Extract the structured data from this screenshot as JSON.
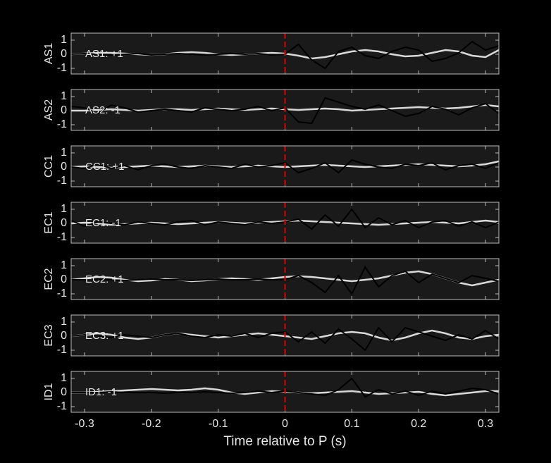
{
  "chart_data": [
    {
      "type": "line",
      "ylabel": "AS1",
      "annotation": "AS1: +1",
      "annotation_color": "#c00000",
      "vline": 0,
      "vline_color": "#e00000",
      "x": [
        -0.32,
        -0.3,
        -0.28,
        -0.26,
        -0.24,
        -0.22,
        -0.2,
        -0.18,
        -0.16,
        -0.14,
        -0.12,
        -0.1,
        -0.08,
        -0.06,
        -0.04,
        -0.02,
        0,
        0.02,
        0.04,
        0.06,
        0.08,
        0.1,
        0.12,
        0.14,
        0.16,
        0.18,
        0.2,
        0.22,
        0.24,
        0.26,
        0.28,
        0.3,
        0.32
      ],
      "xlim": [
        -0.32,
        0.32
      ],
      "ylim": [
        -1.4,
        1.5
      ],
      "yticks": [
        -1,
        0,
        1
      ],
      "series": [
        {
          "color": "#d9d9d9",
          "values": [
            0,
            0.05,
            0.1,
            0.1,
            0.05,
            0,
            -0.05,
            0,
            0.1,
            0.15,
            0.1,
            0,
            -0.05,
            0,
            0.05,
            0.1,
            0.05,
            -0.1,
            -0.3,
            -0.2,
            0,
            0.2,
            0.3,
            0.2,
            0,
            -0.15,
            -0.1,
            0.1,
            0.3,
            0.2,
            -0.1,
            -0.2,
            0.3
          ]
        },
        {
          "color": "#000000",
          "values": [
            0,
            0.05,
            0,
            -0.05,
            0,
            0.05,
            -0.05,
            0,
            0.05,
            0,
            -0.05,
            0,
            0.05,
            0,
            0.05,
            -0.05,
            0,
            0.7,
            -0.4,
            -1,
            0.2,
            0.5,
            -0.1,
            -0.3,
            0.2,
            0.5,
            0.3,
            -0.5,
            -0.3,
            0.1,
            0.9,
            0.3,
            0.6
          ]
        }
      ]
    },
    {
      "type": "line",
      "ylabel": "AS2",
      "annotation": "AS2: -1",
      "annotation_color": "#1010a0",
      "vline": 0,
      "vline_color": "#e00000",
      "x": [
        -0.32,
        -0.3,
        -0.28,
        -0.26,
        -0.24,
        -0.22,
        -0.2,
        -0.18,
        -0.16,
        -0.14,
        -0.12,
        -0.1,
        -0.08,
        -0.06,
        -0.04,
        -0.02,
        0,
        0.02,
        0.04,
        0.06,
        0.08,
        0.1,
        0.12,
        0.14,
        0.16,
        0.18,
        0.2,
        0.22,
        0.24,
        0.26,
        0.28,
        0.3,
        0.32
      ],
      "xlim": [
        -0.32,
        0.32
      ],
      "ylim": [
        -1.4,
        1.5
      ],
      "yticks": [
        -1,
        0,
        1
      ],
      "series": [
        {
          "color": "#d9d9d9",
          "values": [
            0,
            0,
            0.05,
            0.1,
            0.05,
            0,
            0.05,
            0.1,
            0.1,
            0.05,
            0.1,
            0.15,
            0.1,
            0.05,
            0.1,
            0.15,
            0.1,
            0.05,
            0.1,
            0.15,
            0.1,
            0,
            0.05,
            0.1,
            0.15,
            0.2,
            0.25,
            0.2,
            0.15,
            0.2,
            0.3,
            0.4,
            0.3
          ]
        },
        {
          "color": "#000000",
          "values": [
            0.3,
            0.2,
            -0.2,
            0.4,
            0.2,
            -0.1,
            0,
            0.1,
            0,
            -0.1,
            0.2,
            0.1,
            0,
            0.1,
            0.3,
            0,
            0.2,
            -0.8,
            -0.9,
            0.9,
            0.6,
            0.3,
            0.1,
            0.4,
            0,
            -0.4,
            -0.2,
            0.3,
            0.1,
            -0.3,
            0.2,
            0.5,
            -0.2
          ]
        }
      ]
    },
    {
      "type": "line",
      "ylabel": "CC1",
      "annotation": "CC1: +1",
      "annotation_color": "#c00000",
      "vline": 0,
      "vline_color": "#e00000",
      "x": [
        -0.32,
        -0.3,
        -0.28,
        -0.26,
        -0.24,
        -0.22,
        -0.2,
        -0.18,
        -0.16,
        -0.14,
        -0.12,
        -0.1,
        -0.08,
        -0.06,
        -0.04,
        -0.02,
        0,
        0.02,
        0.04,
        0.06,
        0.08,
        0.1,
        0.12,
        0.14,
        0.16,
        0.18,
        0.2,
        0.22,
        0.24,
        0.26,
        0.28,
        0.3,
        0.32
      ],
      "xlim": [
        -0.32,
        0.32
      ],
      "ylim": [
        -1.4,
        1.5
      ],
      "yticks": [
        -1,
        0,
        1
      ],
      "series": [
        {
          "color": "#d9d9d9",
          "values": [
            0,
            0.05,
            0,
            -0.05,
            0,
            0.05,
            0.1,
            0.05,
            0,
            0.05,
            0.1,
            0.05,
            0,
            0.05,
            0.1,
            0.05,
            0,
            0.05,
            0.1,
            0.15,
            0.1,
            0.05,
            0,
            0.05,
            0.1,
            0.15,
            0.2,
            0.15,
            0.1,
            0.05,
            0.1,
            0.2,
            0.4
          ]
        },
        {
          "color": "#000000",
          "values": [
            0,
            -0.1,
            0.2,
            -0.1,
            0.1,
            -0.2,
            0.1,
            0.2,
            0,
            -0.1,
            0.1,
            0,
            -0.1,
            0.2,
            0,
            0.1,
            0.3,
            -0.4,
            -0.1,
            0.3,
            -0.4,
            0.5,
            0.2,
            0,
            -0.1,
            0.2,
            0.1,
            0.3,
            -0.2,
            0.1,
            0.2,
            -0.1,
            0.3
          ]
        }
      ]
    },
    {
      "type": "line",
      "ylabel": "EC1",
      "annotation": "EC1: -1",
      "annotation_color": "#1010a0",
      "vline": 0,
      "vline_color": "#e00000",
      "x": [
        -0.32,
        -0.3,
        -0.28,
        -0.26,
        -0.24,
        -0.22,
        -0.2,
        -0.18,
        -0.16,
        -0.14,
        -0.12,
        -0.1,
        -0.08,
        -0.06,
        -0.04,
        -0.02,
        0,
        0.02,
        0.04,
        0.06,
        0.08,
        0.1,
        0.12,
        0.14,
        0.16,
        0.18,
        0.2,
        0.22,
        0.24,
        0.26,
        0.28,
        0.3,
        0.32
      ],
      "xlim": [
        -0.32,
        0.32
      ],
      "ylim": [
        -1.4,
        1.5
      ],
      "yticks": [
        -1,
        0,
        1
      ],
      "series": [
        {
          "color": "#d9d9d9",
          "values": [
            0,
            0.05,
            0,
            -0.1,
            -0.05,
            0,
            0.05,
            0,
            -0.05,
            0,
            0.05,
            0.1,
            0.05,
            0,
            0.05,
            0.1,
            0.15,
            0.2,
            0.15,
            0.1,
            0.05,
            0,
            -0.05,
            -0.1,
            -0.05,
            0,
            0.05,
            0.1,
            0.05,
            0,
            0.1,
            0.2,
            0.1
          ]
        },
        {
          "color": "#000000",
          "values": [
            0.2,
            -0.2,
            0.1,
            0,
            -0.1,
            0.1,
            0,
            -0.1,
            0.1,
            0.2,
            -0.1,
            0.1,
            0,
            -0.1,
            0.1,
            0,
            0.1,
            0.3,
            -0.4,
            0.6,
            -0.2,
            1.0,
            -0.3,
            0.4,
            -0.1,
            0.2,
            -0.3,
            0.1,
            0.2,
            -0.2,
            0.1,
            -0.3,
            0.1
          ]
        }
      ]
    },
    {
      "type": "line",
      "ylabel": "EC2",
      "annotation": "EC2: +1",
      "annotation_color": "#c00000",
      "vline": 0,
      "vline_color": "#e00000",
      "x": [
        -0.32,
        -0.3,
        -0.28,
        -0.26,
        -0.24,
        -0.22,
        -0.2,
        -0.18,
        -0.16,
        -0.14,
        -0.12,
        -0.1,
        -0.08,
        -0.06,
        -0.04,
        -0.02,
        0,
        0.02,
        0.04,
        0.06,
        0.08,
        0.1,
        0.12,
        0.14,
        0.16,
        0.18,
        0.2,
        0.22,
        0.24,
        0.26,
        0.28,
        0.3,
        0.32
      ],
      "xlim": [
        -0.32,
        0.32
      ],
      "ylim": [
        -1.4,
        1.5
      ],
      "yticks": [
        -1,
        0,
        1
      ],
      "series": [
        {
          "color": "#d9d9d9",
          "values": [
            0,
            0.1,
            0.2,
            0.15,
            0,
            -0.1,
            -0.05,
            0.05,
            0,
            -0.1,
            -0.05,
            0.05,
            0.1,
            0.05,
            0,
            0.1,
            0.2,
            0.25,
            0.2,
            0.1,
            0,
            -0.1,
            0,
            0.1,
            0.3,
            0.5,
            0.6,
            0.4,
            0.1,
            -0.2,
            -0.4,
            -0.2,
            0
          ]
        },
        {
          "color": "#000000",
          "values": [
            0,
            0,
            0.05,
            0,
            -0.05,
            0,
            0.05,
            0,
            0,
            -0.05,
            0,
            0.05,
            0,
            0,
            0.05,
            0,
            0,
            0.3,
            -0.2,
            -0.9,
            0.3,
            -1.0,
            0.9,
            -0.5,
            0.3,
            0.6,
            -0.2,
            0.4,
            0.1,
            -0.2,
            0.3,
            0.1,
            -0.1
          ]
        }
      ]
    },
    {
      "type": "line",
      "ylabel": "EC3",
      "annotation": "EC3: +1",
      "annotation_color": "#c00000",
      "vline": 0,
      "vline_color": "#e00000",
      "x": [
        -0.32,
        -0.3,
        -0.28,
        -0.26,
        -0.24,
        -0.22,
        -0.2,
        -0.18,
        -0.16,
        -0.14,
        -0.12,
        -0.1,
        -0.08,
        -0.06,
        -0.04,
        -0.02,
        0,
        0.02,
        0.04,
        0.06,
        0.08,
        0.1,
        0.12,
        0.14,
        0.16,
        0.18,
        0.2,
        0.22,
        0.24,
        0.26,
        0.28,
        0.3,
        0.32
      ],
      "xlim": [
        -0.32,
        0.32
      ],
      "ylim": [
        -1.4,
        1.5
      ],
      "yticks": [
        -1,
        0,
        1
      ],
      "series": [
        {
          "color": "#d9d9d9",
          "values": [
            0,
            0.1,
            0.2,
            0.1,
            -0.1,
            -0.2,
            -0.1,
            0.1,
            0.2,
            0.1,
            0,
            -0.1,
            0,
            0.1,
            0.2,
            0.1,
            0,
            -0.1,
            -0.2,
            0,
            0.2,
            0.3,
            0.2,
            -0.1,
            -0.3,
            -0.1,
            0.2,
            0.4,
            0.2,
            -0.1,
            -0.2,
            0,
            0.1
          ]
        },
        {
          "color": "#000000",
          "values": [
            0,
            0.1,
            0,
            -0.1,
            0.1,
            0,
            -0.1,
            0.1,
            0.2,
            0,
            -0.1,
            0.1,
            0,
            0.2,
            -0.1,
            0.2,
            0.3,
            -0.4,
            0.3,
            -0.5,
            0.5,
            -0.2,
            -1.0,
            0.6,
            -0.4,
            0.6,
            0.3,
            0,
            -0.3,
            0.1,
            -0.2,
            0.4,
            -0.2
          ]
        }
      ]
    },
    {
      "type": "line",
      "ylabel": "ID1",
      "annotation": "ID1: -1",
      "annotation_color": "#1010a0",
      "vline": 0,
      "vline_color": "#e00000",
      "x": [
        -0.32,
        -0.3,
        -0.28,
        -0.26,
        -0.24,
        -0.22,
        -0.2,
        -0.18,
        -0.16,
        -0.14,
        -0.12,
        -0.1,
        -0.08,
        -0.06,
        -0.04,
        -0.02,
        0,
        0.02,
        0.04,
        0.06,
        0.08,
        0.1,
        0.12,
        0.14,
        0.16,
        0.18,
        0.2,
        0.22,
        0.24,
        0.26,
        0.28,
        0.3,
        0.32
      ],
      "xlim": [
        -0.32,
        0.32
      ],
      "ylim": [
        -1.4,
        1.5
      ],
      "yticks": [
        -1,
        0,
        1
      ],
      "xticks": [
        -0.3,
        -0.2,
        -0.1,
        0,
        0.1,
        0.2,
        0.3
      ],
      "xlabel": "Time relative to P (s)",
      "series": [
        {
          "color": "#d9d9d9",
          "values": [
            0,
            0,
            0.05,
            0.1,
            0.15,
            0.2,
            0.25,
            0.2,
            0.15,
            0.2,
            0.3,
            0.2,
            0,
            -0.1,
            0,
            0.1,
            0.05,
            0,
            -0.05,
            0,
            0.05,
            0.1,
            0,
            -0.1,
            -0.05,
            0,
            0.05,
            -0.1,
            -0.2,
            -0.1,
            0,
            0.1,
            0.1
          ]
        },
        {
          "color": "#000000",
          "values": [
            0,
            0,
            0,
            0.05,
            0,
            0,
            0,
            -0.05,
            0,
            0,
            0.05,
            0,
            -0.05,
            0,
            0.1,
            0,
            0.1,
            0,
            -0.1,
            -0.2,
            0.2,
            1.0,
            -0.3,
            0.2,
            -0.1,
            0.1,
            -0.2,
            0.1,
            -0.1,
            0.1,
            0.3,
            0.2,
            -0.1
          ]
        }
      ]
    }
  ]
}
